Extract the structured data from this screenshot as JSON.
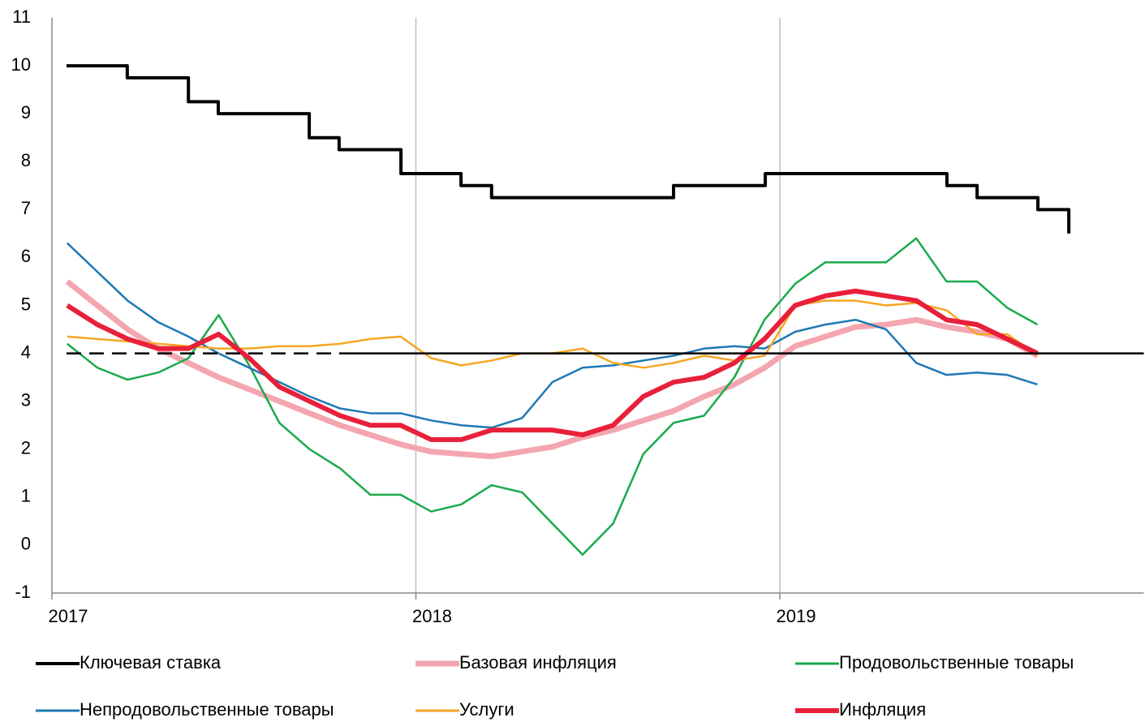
{
  "chart_data": {
    "type": "line",
    "x": [
      2017.042,
      2017.125,
      2017.208,
      2017.292,
      2017.375,
      2017.458,
      2017.542,
      2017.625,
      2017.708,
      2017.792,
      2017.875,
      2017.958,
      2018.042,
      2018.125,
      2018.208,
      2018.292,
      2018.375,
      2018.458,
      2018.542,
      2018.625,
      2018.708,
      2018.792,
      2018.875,
      2018.958,
      2019.042,
      2019.125,
      2019.208,
      2019.292,
      2019.375,
      2019.458,
      2019.542,
      2019.625,
      2019.708
    ],
    "xlim": [
      2017,
      2020
    ],
    "xticks": [
      2017,
      2018,
      2019
    ],
    "ylim": [
      -1,
      11
    ],
    "yticks": [
      -1,
      0,
      1,
      2,
      3,
      4,
      5,
      6,
      7,
      8,
      9,
      10,
      11
    ],
    "grid": true,
    "series": [
      {
        "name": "Ключевая ставка",
        "color": "#000000",
        "width": 4,
        "step": true,
        "x": [
          2017.04,
          2017.207,
          2017.375,
          2017.457,
          2017.707,
          2017.789,
          2017.959,
          2018.124,
          2018.208,
          2018.708,
          2018.96,
          2019.459,
          2019.542,
          2019.709,
          2019.794
        ],
        "values": [
          10,
          9.75,
          9.25,
          9,
          8.5,
          8.25,
          7.75,
          7.5,
          7.25,
          7.5,
          7.75,
          7.5,
          7.25,
          7,
          6.5
        ]
      },
      {
        "name": "Базовая инфляция",
        "color": "#f4a6b0",
        "width": 7,
        "values": [
          5.5,
          5.0,
          4.5,
          4.1,
          3.8,
          3.5,
          3.25,
          3.0,
          2.75,
          2.5,
          2.3,
          2.1,
          1.95,
          1.9,
          1.85,
          1.95,
          2.05,
          2.25,
          2.4,
          2.6,
          2.8,
          3.1,
          3.35,
          3.7,
          4.15,
          4.35,
          4.55,
          4.6,
          4.7,
          4.55,
          4.45,
          4.3,
          3.95
        ]
      },
      {
        "name": "Продовольственные товары",
        "color": "#1aaa4b",
        "width": 2.5,
        "values": [
          4.2,
          3.7,
          3.45,
          3.6,
          3.9,
          4.8,
          3.75,
          2.55,
          2.0,
          1.6,
          1.05,
          1.05,
          0.7,
          0.85,
          1.25,
          1.1,
          0.45,
          -0.2,
          0.45,
          1.9,
          2.55,
          2.7,
          3.5,
          4.7,
          5.45,
          5.9,
          5.9,
          5.9,
          6.4,
          5.5,
          5.5,
          4.95,
          4.6
        ]
      },
      {
        "name": "Непродовольственные товары",
        "color": "#1f78b4",
        "width": 2.5,
        "values": [
          6.3,
          5.7,
          5.1,
          4.65,
          4.35,
          4.0,
          3.7,
          3.4,
          3.1,
          2.85,
          2.75,
          2.75,
          2.6,
          2.5,
          2.45,
          2.65,
          3.4,
          3.7,
          3.75,
          3.85,
          3.95,
          4.1,
          4.15,
          4.1,
          4.45,
          4.6,
          4.7,
          4.5,
          3.8,
          3.55,
          3.6,
          3.55,
          3.35
        ]
      },
      {
        "name": "Услуги",
        "color": "#f5a623",
        "width": 2.5,
        "values": [
          4.35,
          4.3,
          4.25,
          4.2,
          4.15,
          4.1,
          4.1,
          4.15,
          4.15,
          4.2,
          4.3,
          4.35,
          3.9,
          3.75,
          3.85,
          4.0,
          4.0,
          4.1,
          3.8,
          3.7,
          3.8,
          3.95,
          3.85,
          3.95,
          5.0,
          5.1,
          5.1,
          5.0,
          5.05,
          4.9,
          4.4,
          4.4,
          3.95
        ]
      },
      {
        "name": "Инфляция",
        "color": "#e8203a",
        "width": 6,
        "values": [
          5.0,
          4.6,
          4.3,
          4.1,
          4.1,
          4.4,
          3.9,
          3.3,
          3.0,
          2.7,
          2.5,
          2.5,
          2.2,
          2.2,
          2.4,
          2.4,
          2.4,
          2.3,
          2.5,
          3.1,
          3.4,
          3.5,
          3.8,
          4.3,
          5.0,
          5.2,
          5.3,
          5.2,
          5.1,
          4.7,
          4.6,
          4.3,
          4.0
        ]
      },
      {
        "color": "#000000",
        "width": 2.5,
        "dash": true,
        "x": [
          2017.04,
          2017.789
        ],
        "values": [
          4,
          4
        ]
      },
      {
        "color": "#000000",
        "width": 2.5,
        "x": [
          2017.789,
          2020
        ],
        "values": [
          4,
          4
        ]
      }
    ]
  }
}
